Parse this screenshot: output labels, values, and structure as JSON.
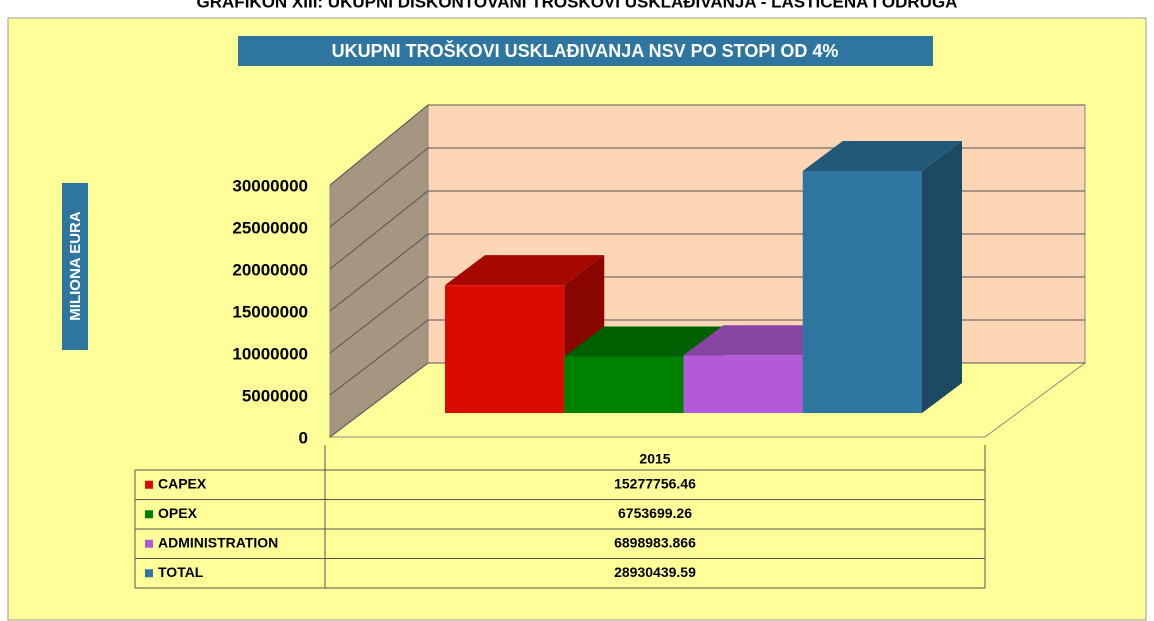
{
  "heading": "GRAFIKON XIII: UKUPNI DISKONTOVANI TROŠKOVI USKLAĐIVANJA - LASTICENA I ODRUGA",
  "chart_data": {
    "type": "bar3d",
    "title": "UKUPNI TROŠKOVI USKLAĐIVANJA NSV PO STOPI OD 4%",
    "y_label": "MILIONA EURA",
    "categories": [
      "2015"
    ],
    "series": [
      {
        "name": "CAPEX",
        "color": "#dd0a00",
        "values": [
          15277756.46
        ]
      },
      {
        "name": "OPEX",
        "color": "#008000",
        "values": [
          6753699.26
        ]
      },
      {
        "name": "ADMINISTRATION",
        "color": "#b45ad8",
        "values": [
          6898983.866
        ]
      },
      {
        "name": "TOTAL",
        "color": "#2e76a0",
        "values": [
          28930439.59
        ]
      }
    ],
    "ylim": [
      0,
      30000000
    ],
    "yticks": [
      0,
      5000000,
      10000000,
      15000000,
      20000000,
      25000000,
      30000000
    ],
    "grid": true,
    "data_table": true
  }
}
